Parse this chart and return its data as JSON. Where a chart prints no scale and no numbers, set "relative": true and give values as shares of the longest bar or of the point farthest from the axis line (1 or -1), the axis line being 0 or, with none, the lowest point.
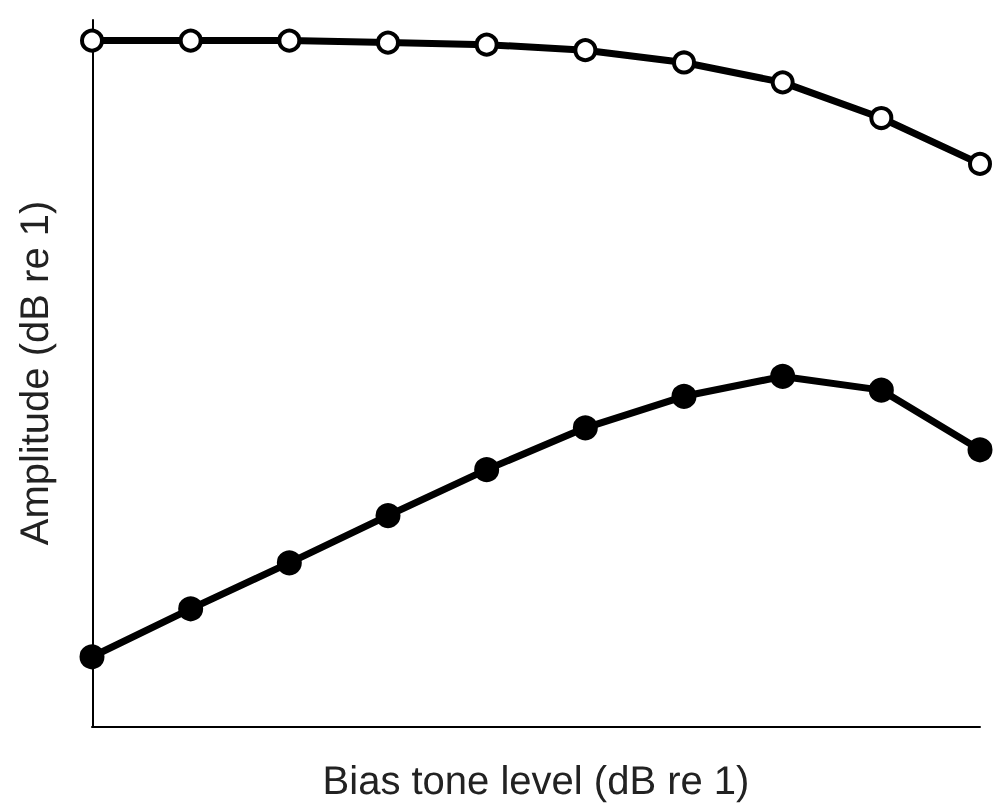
{
  "chart_data": {
    "type": "line",
    "relative": true,
    "xlabel": "Bias tone level (dB re 1)",
    "ylabel": "Amplitude (dB re 1)",
    "categories": [
      null,
      null,
      null,
      null,
      null,
      null,
      null,
      null,
      null,
      null
    ],
    "marker": "circle",
    "line_style": "solid",
    "grid": false,
    "series": [
      {
        "color": "#000000",
        "values": [
          1,
          1,
          1,
          0.997,
          0.994,
          0.986,
          0.968,
          0.939,
          0.887,
          0.82
        ]
      },
      {
        "color": "#000000",
        "values": [
          0.101,
          0.171,
          0.238,
          0.307,
          0.374,
          0.435,
          0.481,
          0.51,
          0.49,
          0.403
        ]
      }
    ]
  }
}
